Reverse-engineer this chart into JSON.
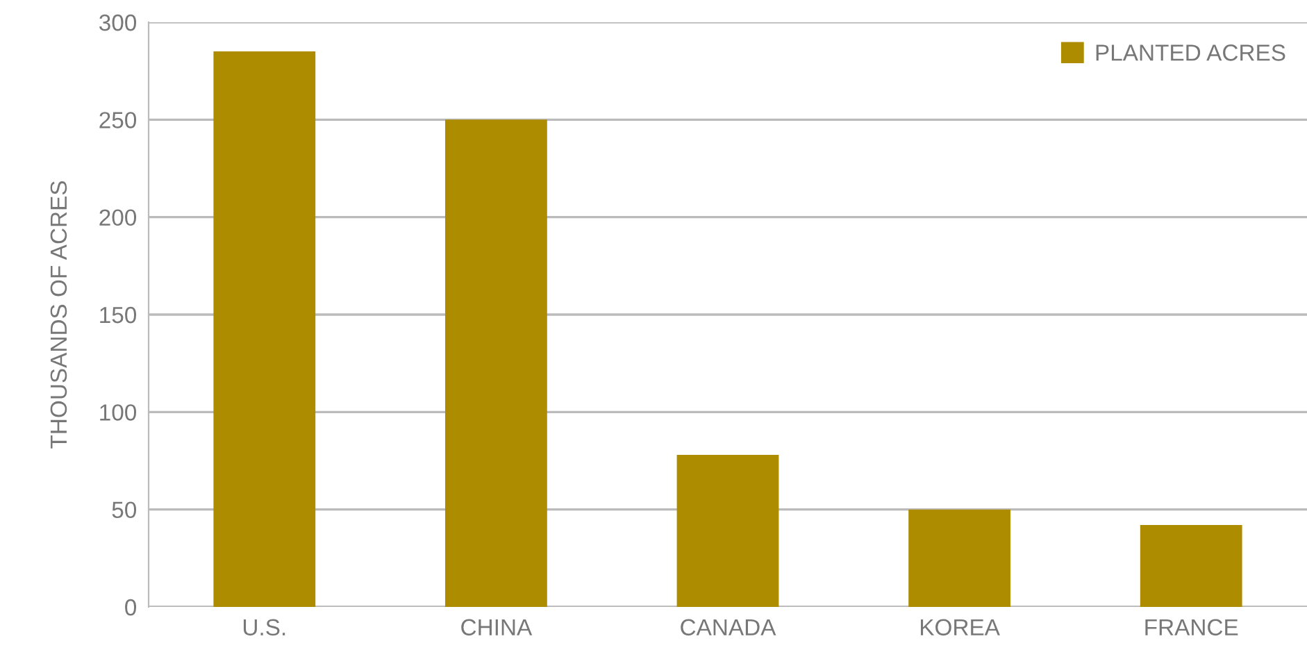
{
  "chart_data": {
    "type": "bar",
    "ylabel": "THOUSANDS OF ACRES",
    "categories": [
      "U.S.",
      "CHINA",
      "CANADA",
      "KOREA",
      "FRANCE"
    ],
    "series": [
      {
        "name": "PLANTED ACRES",
        "color": "#ad8c00",
        "values": [
          285,
          250,
          78,
          50,
          42
        ]
      }
    ],
    "ylim": [
      0,
      300
    ],
    "yticks": [
      0,
      50,
      100,
      150,
      200,
      250,
      300
    ],
    "grid": "y",
    "legend": "top right"
  }
}
